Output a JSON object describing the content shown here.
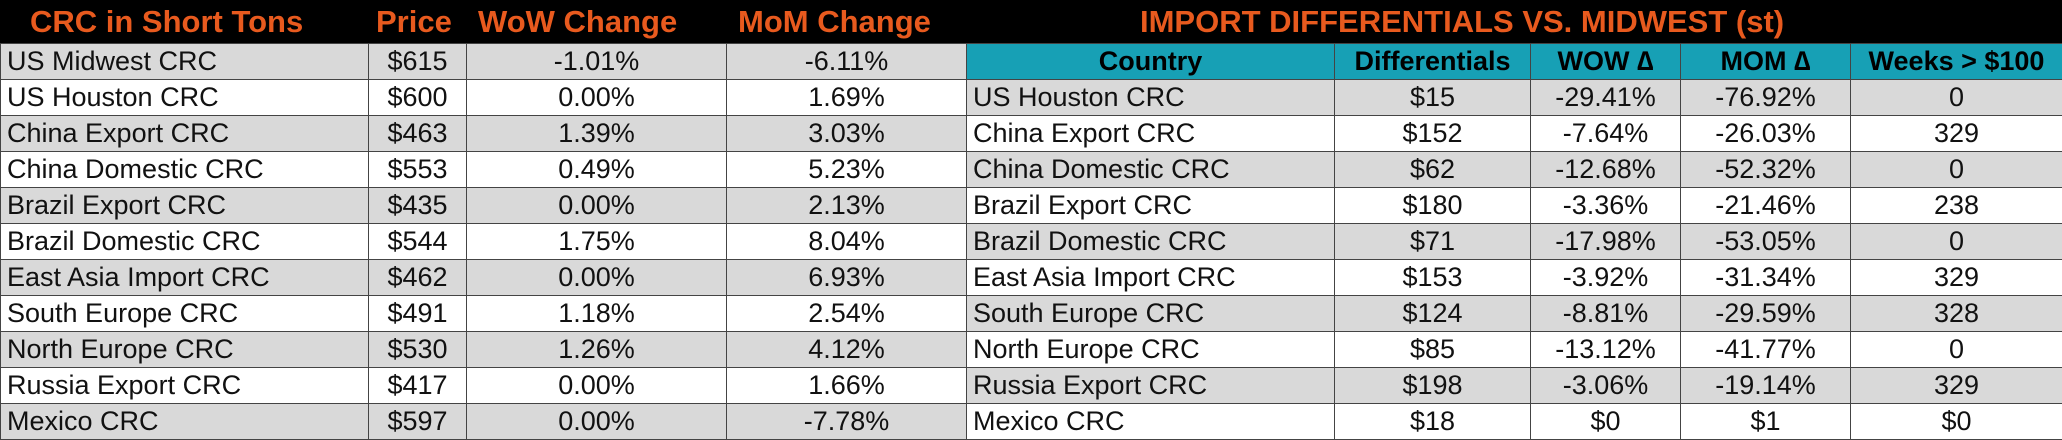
{
  "left": {
    "headers": {
      "name": "CRC in Short Tons",
      "price": "Price",
      "wow": "WoW Change",
      "mom": "MoM Change"
    },
    "rows": [
      {
        "name": "US Midwest CRC",
        "price": "$615",
        "wow": "-1.01%",
        "mom": "-6.11%"
      },
      {
        "name": "US Houston CRC",
        "price": "$600",
        "wow": "0.00%",
        "mom": "1.69%"
      },
      {
        "name": "China Export CRC",
        "price": "$463",
        "wow": "1.39%",
        "mom": "3.03%"
      },
      {
        "name": "China Domestic CRC",
        "price": "$553",
        "wow": "0.49%",
        "mom": "5.23%"
      },
      {
        "name": "Brazil Export CRC",
        "price": "$435",
        "wow": "0.00%",
        "mom": "2.13%"
      },
      {
        "name": "Brazil Domestic CRC",
        "price": "$544",
        "wow": "1.75%",
        "mom": "8.04%"
      },
      {
        "name": "East Asia Import CRC",
        "price": "$462",
        "wow": "0.00%",
        "mom": "6.93%"
      },
      {
        "name": "South Europe CRC",
        "price": "$491",
        "wow": "1.18%",
        "mom": "2.54%"
      },
      {
        "name": "North Europe CRC",
        "price": "$530",
        "wow": "1.26%",
        "mom": "4.12%"
      },
      {
        "name": "Russia Export CRC",
        "price": "$417",
        "wow": "0.00%",
        "mom": "1.66%"
      },
      {
        "name": "Mexico CRC",
        "price": "$597",
        "wow": "0.00%",
        "mom": "-7.78%"
      }
    ]
  },
  "right": {
    "title": "IMPORT DIFFERENTIALS VS. MIDWEST (st)",
    "columns": {
      "country": "Country",
      "diff": "Differentials",
      "wow": "WOW ∆",
      "mom": "MOM ∆",
      "weeks": "Weeks > $100"
    },
    "rows": [
      {
        "country": "US Houston CRC",
        "diff": "$15",
        "wow": "-29.41%",
        "mom": "-76.92%",
        "weeks": "0"
      },
      {
        "country": "China Export CRC",
        "diff": "$152",
        "wow": "-7.64%",
        "mom": "-26.03%",
        "weeks": "329"
      },
      {
        "country": "China Domestic CRC",
        "diff": "$62",
        "wow": "-12.68%",
        "mom": "-52.32%",
        "weeks": "0"
      },
      {
        "country": "Brazil Export CRC",
        "diff": "$180",
        "wow": "-3.36%",
        "mom": "-21.46%",
        "weeks": "238"
      },
      {
        "country": "Brazil Domestic CRC",
        "diff": "$71",
        "wow": "-17.98%",
        "mom": "-53.05%",
        "weeks": "0"
      },
      {
        "country": "East Asia Import CRC",
        "diff": "$153",
        "wow": "-3.92%",
        "mom": "-31.34%",
        "weeks": "329"
      },
      {
        "country": "South Europe CRC",
        "diff": "$124",
        "wow": "-8.81%",
        "mom": "-29.59%",
        "weeks": "328"
      },
      {
        "country": "North Europe CRC",
        "diff": "$85",
        "wow": "-13.12%",
        "mom": "-41.77%",
        "weeks": "0"
      },
      {
        "country": "Russia Export CRC",
        "diff": "$198",
        "wow": "-3.06%",
        "mom": "-19.14%",
        "weeks": "329"
      },
      {
        "country": "Mexico CRC",
        "diff": "$18",
        "wow": "$0",
        "mom": "$1",
        "weeks": "$0"
      }
    ]
  },
  "colors": {
    "header_band": "#000000",
    "header_text": "#e85a1e",
    "column_header_bg": "#17a0b5",
    "row_shade": "#d9d9d9",
    "row_plain": "#ffffff"
  }
}
